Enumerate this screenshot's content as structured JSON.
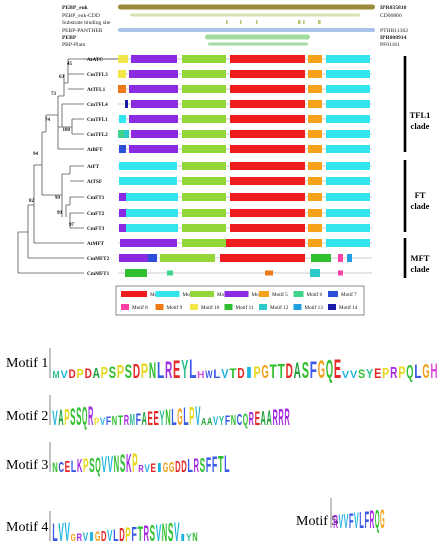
{
  "domains": [
    {
      "name": "PEBP_euk",
      "acc": "IPR035810",
      "bold": true,
      "color": "#9c8a3c"
    },
    {
      "name": "PEBP_euk-CDD",
      "acc": "CD00866",
      "bold": false,
      "color": "#d9e2b6"
    },
    {
      "name": "Substrate binding site",
      "acc": "",
      "bold": false,
      "color": "#b7c97a"
    },
    {
      "name": "PEBP-PANTHER",
      "acc": "PTHR11362",
      "bold": false,
      "color": "#a9c2e8"
    },
    {
      "name": "PEBP",
      "acc": "IPR008914",
      "bold": true,
      "color": "#9fdc9b"
    },
    {
      "name": "PBP-Plam",
      "acc": "PF01161",
      "bold": false,
      "color": "#a7d9a3"
    }
  ],
  "genes": [
    "AtATC",
    "CmTFL3",
    "AtTFL1",
    "CmTFL4",
    "CmTFL1",
    "CmTFL2",
    "AtBFT",
    "AtFT",
    "AtTSF",
    "CmFT1",
    "CmFT2",
    "CmFT3",
    "AtMFT",
    "CmMFT2",
    "CmMFT1"
  ],
  "bootstrap": [
    "45",
    "63",
    "73",
    "74",
    "100",
    "94",
    "99",
    "99",
    "97",
    "82"
  ],
  "clades": [
    "TFL1 clade",
    "FT clade",
    "MFT clade"
  ],
  "motif_legend": [
    {
      "label": "Motif 1",
      "color": "#ee1c1c"
    },
    {
      "label": "Motif 2",
      "color": "#33e6ee"
    },
    {
      "label": "Motif 3",
      "color": "#93d63a"
    },
    {
      "label": "Motif 4",
      "color": "#8a2be2"
    },
    {
      "label": "Motif 5",
      "color": "#f7a21b"
    },
    {
      "label": "Motif 6",
      "color": "#3fd48a"
    },
    {
      "label": "Motif 7",
      "color": "#2b4fd9"
    },
    {
      "label": "Motif 8",
      "color": "#ff3fa8"
    },
    {
      "label": "Motif 9",
      "color": "#f07a1a"
    },
    {
      "label": "Motif 10",
      "color": "#f2e64a"
    },
    {
      "label": "Motif 11",
      "color": "#2fbf2f"
    },
    {
      "label": "Motif 12",
      "color": "#2ec9c9"
    },
    {
      "label": "Motif 13",
      "color": "#1f9fe0"
    },
    {
      "label": "Motif 14",
      "color": "#1a1aa8"
    }
  ],
  "logos": [
    {
      "label": "Motif 1",
      "seq": "MVDPDAPSPSDPNLREYLHWLVTDIPGTTDASFGQEVVSYEPRPQLGH"
    },
    {
      "label": "Motif 2",
      "seq": "VAPSSQRPVFNTRMFAEEYNLGLPVAAVYFNCQREAARRR"
    },
    {
      "label": "Motif 3",
      "seq": "NCELKPSQVVNSKPRVEIGGDDLRSFFTL"
    },
    {
      "label": "Motif 4",
      "seq": "LVVGRVIGDVLDPFTRSVNSVIYN"
    },
    {
      "label": "Motif 5",
      "seq": "RVVFVLFRQG"
    }
  ]
}
